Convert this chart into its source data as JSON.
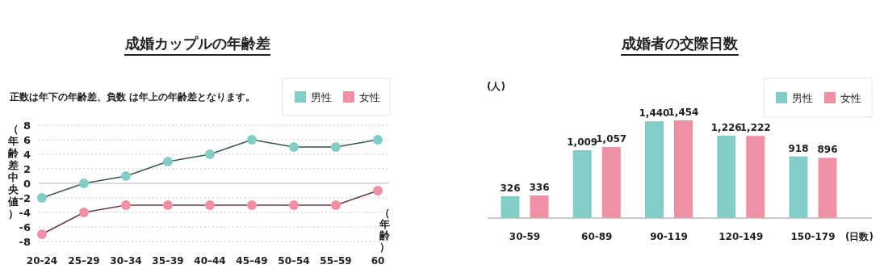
{
  "chart_data": [
    {
      "type": "line",
      "title": "成婚カップルの年齢差",
      "ylabel": "（年齢差中央値）",
      "xlabel": "（年齢）",
      "annotations": [
        "正数は年下の年齢差、負数 は年上の年齢差となります。"
      ],
      "categories": [
        "20-24",
        "25–29",
        "30–34",
        "35–39",
        "40–44",
        "45–49",
        "50–54",
        "55–59",
        "60"
      ],
      "series": [
        {
          "name": "男性",
          "color": "#82cdc6",
          "values": [
            -2,
            0,
            1,
            3,
            4,
            6,
            5,
            5,
            6
          ]
        },
        {
          "name": "女性",
          "color": "#ef90a4",
          "values": [
            -7,
            -4,
            -3,
            -3,
            -3,
            -3,
            -3,
            -3,
            -1
          ]
        }
      ],
      "ylim": [
        -8,
        8
      ],
      "yticks": [
        -8,
        -6,
        -4,
        -2,
        0,
        2,
        4,
        6,
        8
      ],
      "grid": "y",
      "legend": "top right",
      "marker": "circle",
      "line_style": "solid"
    },
    {
      "type": "bar",
      "title": "成婚者の交際日数",
      "ylabel": "(人)",
      "xlabel": "(日数)",
      "categories": [
        "30-59",
        "60-89",
        "90-119",
        "120-149",
        "150-179"
      ],
      "series": [
        {
          "name": "男性",
          "color": "#82cdc6",
          "values": [
            326,
            1009,
            1440,
            1226,
            918
          ],
          "value_labels": [
            "326",
            "1,009",
            "1,440",
            "1,226",
            "918"
          ]
        },
        {
          "name": "女性",
          "color": "#ef90a4",
          "values": [
            336,
            1057,
            1454,
            1222,
            896
          ],
          "value_labels": [
            "336",
            "1,057",
            "1,454",
            "1,222",
            "896"
          ]
        }
      ],
      "data_labels": true,
      "legend": "top right"
    }
  ]
}
